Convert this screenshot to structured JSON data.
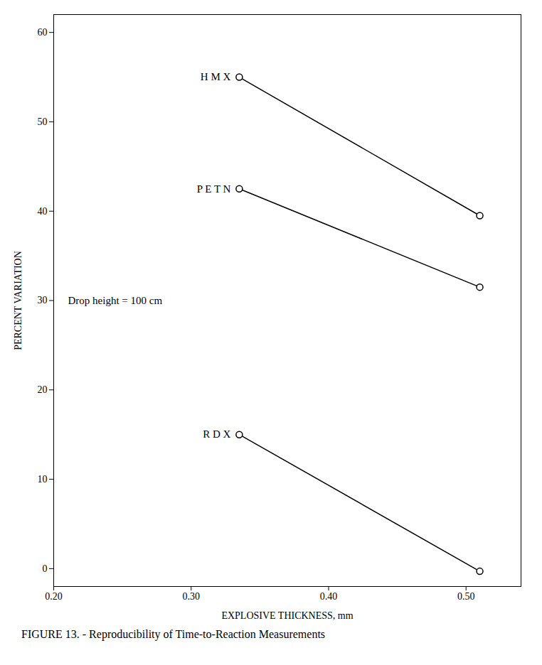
{
  "chart_data": {
    "type": "line",
    "xlabel": "EXPLOSIVE THICKNESS, mm",
    "ylabel": "PERCENT VARIATION",
    "annotation": "Drop height = 100 cm",
    "caption": "FIGURE 13. - Reproducibility of Time-to-Reaction Measurements",
    "x": [
      0.335,
      0.51
    ],
    "series": [
      {
        "name": "H M X",
        "values": [
          55,
          39.5
        ]
      },
      {
        "name": "P E T N",
        "values": [
          42.5,
          31.5
        ]
      },
      {
        "name": "R D X",
        "values": [
          15,
          -0.3
        ]
      }
    ],
    "xlim": [
      0.2,
      0.54
    ],
    "ylim": [
      -2,
      62
    ],
    "xticks": [
      0.2,
      0.3,
      0.4,
      0.5
    ],
    "yticks": [
      0,
      10,
      20,
      30,
      40,
      50,
      60
    ],
    "color": "black",
    "marker": "circle",
    "grid": false
  }
}
